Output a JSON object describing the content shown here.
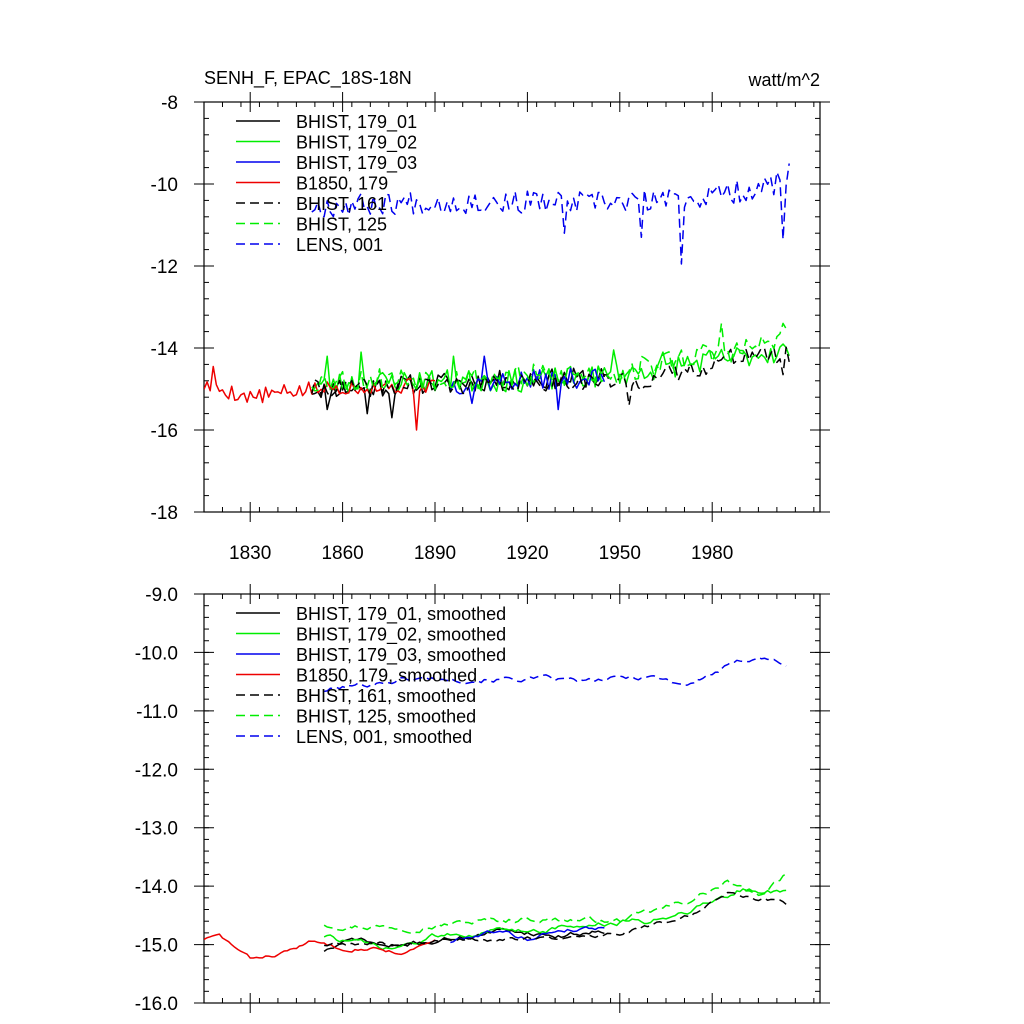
{
  "title_left": "SENH_F, EPAC_18S-18N",
  "title_right": "watt/m^2",
  "chart_data": [
    {
      "type": "line",
      "xlim": [
        1815,
        2015
      ],
      "ylim": [
        -18,
        -8
      ],
      "xticks": [
        1830,
        1860,
        1890,
        1920,
        1950,
        1980
      ],
      "yticks": [
        -8,
        -10,
        -12,
        -14,
        -16,
        -18
      ],
      "ytick_labels": [
        "-8",
        "-10",
        "-12",
        "-14",
        "-16",
        "-18"
      ],
      "legend_placement": "top-left",
      "series": [
        {
          "name": "BHIST, 179_01",
          "color": "#000000",
          "dash": false,
          "x0": 1850,
          "x1": 1945,
          "center": [
            [
              1850,
              -15.0
            ],
            [
              1870,
              -14.95
            ],
            [
              1890,
              -14.85
            ],
            [
              1910,
              -14.8
            ],
            [
              1930,
              -14.75
            ],
            [
              1945,
              -14.7
            ]
          ],
          "amp": 0.25,
          "seed": 11,
          "spikes": [
            [
              1855,
              -15.5
            ],
            [
              1868,
              -15.6
            ],
            [
              1876,
              -15.7
            ]
          ]
        },
        {
          "name": "BHIST, 179_02",
          "color": "#00ee00",
          "dash": false,
          "x0": 1850,
          "x1": 2005,
          "center": [
            [
              1850,
              -14.9
            ],
            [
              1880,
              -14.8
            ],
            [
              1920,
              -14.8
            ],
            [
              1950,
              -14.65
            ],
            [
              1970,
              -14.4
            ],
            [
              1990,
              -14.2
            ],
            [
              2005,
              -14.05
            ]
          ],
          "amp": 0.28,
          "seed": 23,
          "spikes": [
            [
              1855,
              -14.2
            ],
            [
              1866,
              -14.1
            ],
            [
              1896,
              -14.2
            ],
            [
              1948,
              -14.05
            ],
            [
              1964,
              -14.1
            ]
          ]
        },
        {
          "name": "BHIST, 179_03",
          "color": "#0000ee",
          "dash": false,
          "x0": 1895,
          "x1": 1945,
          "center": [
            [
              1895,
              -14.9
            ],
            [
              1915,
              -14.8
            ],
            [
              1930,
              -14.75
            ],
            [
              1945,
              -14.7
            ]
          ],
          "amp": 0.25,
          "seed": 37,
          "spikes": [
            [
              1902,
              -15.35
            ],
            [
              1906,
              -14.2
            ],
            [
              1930,
              -15.5
            ]
          ]
        },
        {
          "name": "B1850, 179",
          "color": "#ee0000",
          "dash": false,
          "x0": 1815,
          "x1": 1890,
          "center": [
            [
              1815,
              -14.9
            ],
            [
              1830,
              -15.2
            ],
            [
              1845,
              -15.05
            ],
            [
              1860,
              -14.95
            ],
            [
              1875,
              -14.95
            ],
            [
              1890,
              -14.9
            ]
          ],
          "amp": 0.2,
          "seed": 5,
          "spikes": [
            [
              1818,
              -14.45
            ],
            [
              1884,
              -16.0
            ]
          ]
        },
        {
          "name": "BHIST, 161",
          "color": "#000000",
          "dash": true,
          "x0": 1850,
          "x1": 2005,
          "center": [
            [
              1850,
              -15.0
            ],
            [
              1900,
              -14.9
            ],
            [
              1940,
              -14.8
            ],
            [
              1955,
              -14.85
            ],
            [
              1975,
              -14.5
            ],
            [
              1990,
              -14.15
            ],
            [
              2005,
              -14.2
            ]
          ],
          "amp": 0.22,
          "seed": 41,
          "spikes": [
            [
              1953,
              -15.4
            ],
            [
              2003,
              -14.65
            ]
          ]
        },
        {
          "name": "BHIST, 125",
          "color": "#00ee00",
          "dash": true,
          "x0": 1850,
          "x1": 2005,
          "center": [
            [
              1850,
              -14.8
            ],
            [
              1880,
              -14.75
            ],
            [
              1920,
              -14.7
            ],
            [
              1950,
              -14.6
            ],
            [
              1970,
              -14.25
            ],
            [
              1990,
              -14.05
            ],
            [
              2005,
              -13.75
            ]
          ],
          "amp": 0.3,
          "seed": 53,
          "spikes": [
            [
              1983,
              -13.4
            ],
            [
              2003,
              -13.4
            ]
          ]
        },
        {
          "name": "LENS, 001",
          "color": "#0000ee",
          "dash": true,
          "x0": 1850,
          "x1": 2005,
          "center": [
            [
              1850,
              -10.55
            ],
            [
              1880,
              -10.45
            ],
            [
              1920,
              -10.45
            ],
            [
              1950,
              -10.45
            ],
            [
              1975,
              -10.35
            ],
            [
              1995,
              -10.1
            ],
            [
              2005,
              -9.9
            ]
          ],
          "amp": 0.28,
          "seed": 67,
          "spikes": [
            [
              1932,
              -11.2
            ],
            [
              1957,
              -11.3
            ],
            [
              1970,
              -11.95
            ],
            [
              1985,
              -10.0
            ],
            [
              2003,
              -11.35
            ],
            [
              2005,
              -9.5
            ]
          ]
        }
      ]
    },
    {
      "type": "line",
      "xlim": [
        1815,
        2015
      ],
      "ylim": [
        -16,
        -9
      ],
      "xticks": [
        1830,
        1860,
        1890,
        1920,
        1950,
        1980
      ],
      "yticks": [
        -9,
        -10,
        -11,
        -12,
        -13,
        -14,
        -15,
        -16
      ],
      "ytick_labels": [
        "-9.0",
        "-10.0",
        "-11.0",
        "-12.0",
        "-13.0",
        "-14.0",
        "-15.0",
        "-16.0"
      ],
      "legend_placement": "top-left",
      "series": [
        {
          "name": "BHIST, 179_01, smoothed",
          "color": "#000000",
          "dash": false,
          "x0": 1854,
          "x1": 1945,
          "center": [
            [
              1854,
              -15.1
            ],
            [
              1865,
              -14.9
            ],
            [
              1875,
              -15.05
            ],
            [
              1895,
              -14.9
            ],
            [
              1915,
              -14.75
            ],
            [
              1930,
              -14.85
            ],
            [
              1945,
              -14.75
            ]
          ],
          "amp": 0.07,
          "seed": 71
        },
        {
          "name": "BHIST, 179_02, smoothed",
          "color": "#00ee00",
          "dash": false,
          "x0": 1854,
          "x1": 2004,
          "center": [
            [
              1854,
              -14.85
            ],
            [
              1875,
              -15.1
            ],
            [
              1895,
              -14.8
            ],
            [
              1920,
              -14.75
            ],
            [
              1945,
              -14.65
            ],
            [
              1960,
              -14.6
            ],
            [
              1975,
              -14.35
            ],
            [
              1990,
              -14.05
            ],
            [
              2004,
              -14.1
            ]
          ],
          "amp": 0.08,
          "seed": 73
        },
        {
          "name": "BHIST, 179_03, smoothed",
          "color": "#0000ee",
          "dash": false,
          "x0": 1895,
          "x1": 1945,
          "center": [
            [
              1895,
              -14.95
            ],
            [
              1910,
              -14.75
            ],
            [
              1920,
              -14.9
            ],
            [
              1930,
              -14.75
            ],
            [
              1945,
              -14.7
            ]
          ],
          "amp": 0.06,
          "seed": 79
        },
        {
          "name": "B1850, 179, smoothed",
          "color": "#ee0000",
          "dash": false,
          "x0": 1815,
          "x1": 1890,
          "center": [
            [
              1815,
              -14.9
            ],
            [
              1820,
              -14.85
            ],
            [
              1830,
              -15.25
            ],
            [
              1840,
              -15.15
            ],
            [
              1850,
              -14.95
            ],
            [
              1860,
              -15.05
            ],
            [
              1870,
              -15.05
            ],
            [
              1880,
              -15.15
            ],
            [
              1890,
              -14.95
            ]
          ],
          "amp": 0.05,
          "seed": 83
        },
        {
          "name": "BHIST, 161, smoothed",
          "color": "#000000",
          "dash": true,
          "x0": 1854,
          "x1": 2004,
          "center": [
            [
              1854,
              -15.0
            ],
            [
              1880,
              -15.0
            ],
            [
              1900,
              -14.9
            ],
            [
              1925,
              -14.9
            ],
            [
              1945,
              -14.85
            ],
            [
              1960,
              -14.7
            ],
            [
              1975,
              -14.45
            ],
            [
              1985,
              -14.1
            ],
            [
              1995,
              -14.2
            ],
            [
              2004,
              -14.3
            ]
          ],
          "amp": 0.06,
          "seed": 89
        },
        {
          "name": "BHIST, 125, smoothed",
          "color": "#00ee00",
          "dash": true,
          "x0": 1854,
          "x1": 2004,
          "center": [
            [
              1854,
              -14.65
            ],
            [
              1880,
              -14.7
            ],
            [
              1920,
              -14.55
            ],
            [
              1950,
              -14.6
            ],
            [
              1970,
              -14.3
            ],
            [
              1985,
              -13.95
            ],
            [
              1995,
              -14.2
            ],
            [
              2004,
              -13.75
            ]
          ],
          "amp": 0.08,
          "seed": 97
        },
        {
          "name": "LENS, 001, smoothed",
          "color": "#0000ee",
          "dash": true,
          "x0": 1854,
          "x1": 2004,
          "center": [
            [
              1854,
              -10.65
            ],
            [
              1880,
              -10.45
            ],
            [
              1920,
              -10.45
            ],
            [
              1940,
              -10.5
            ],
            [
              1960,
              -10.4
            ],
            [
              1972,
              -10.55
            ],
            [
              1985,
              -10.25
            ],
            [
              1995,
              -10.05
            ],
            [
              2004,
              -10.2
            ]
          ],
          "amp": 0.07,
          "seed": 101
        }
      ]
    }
  ]
}
